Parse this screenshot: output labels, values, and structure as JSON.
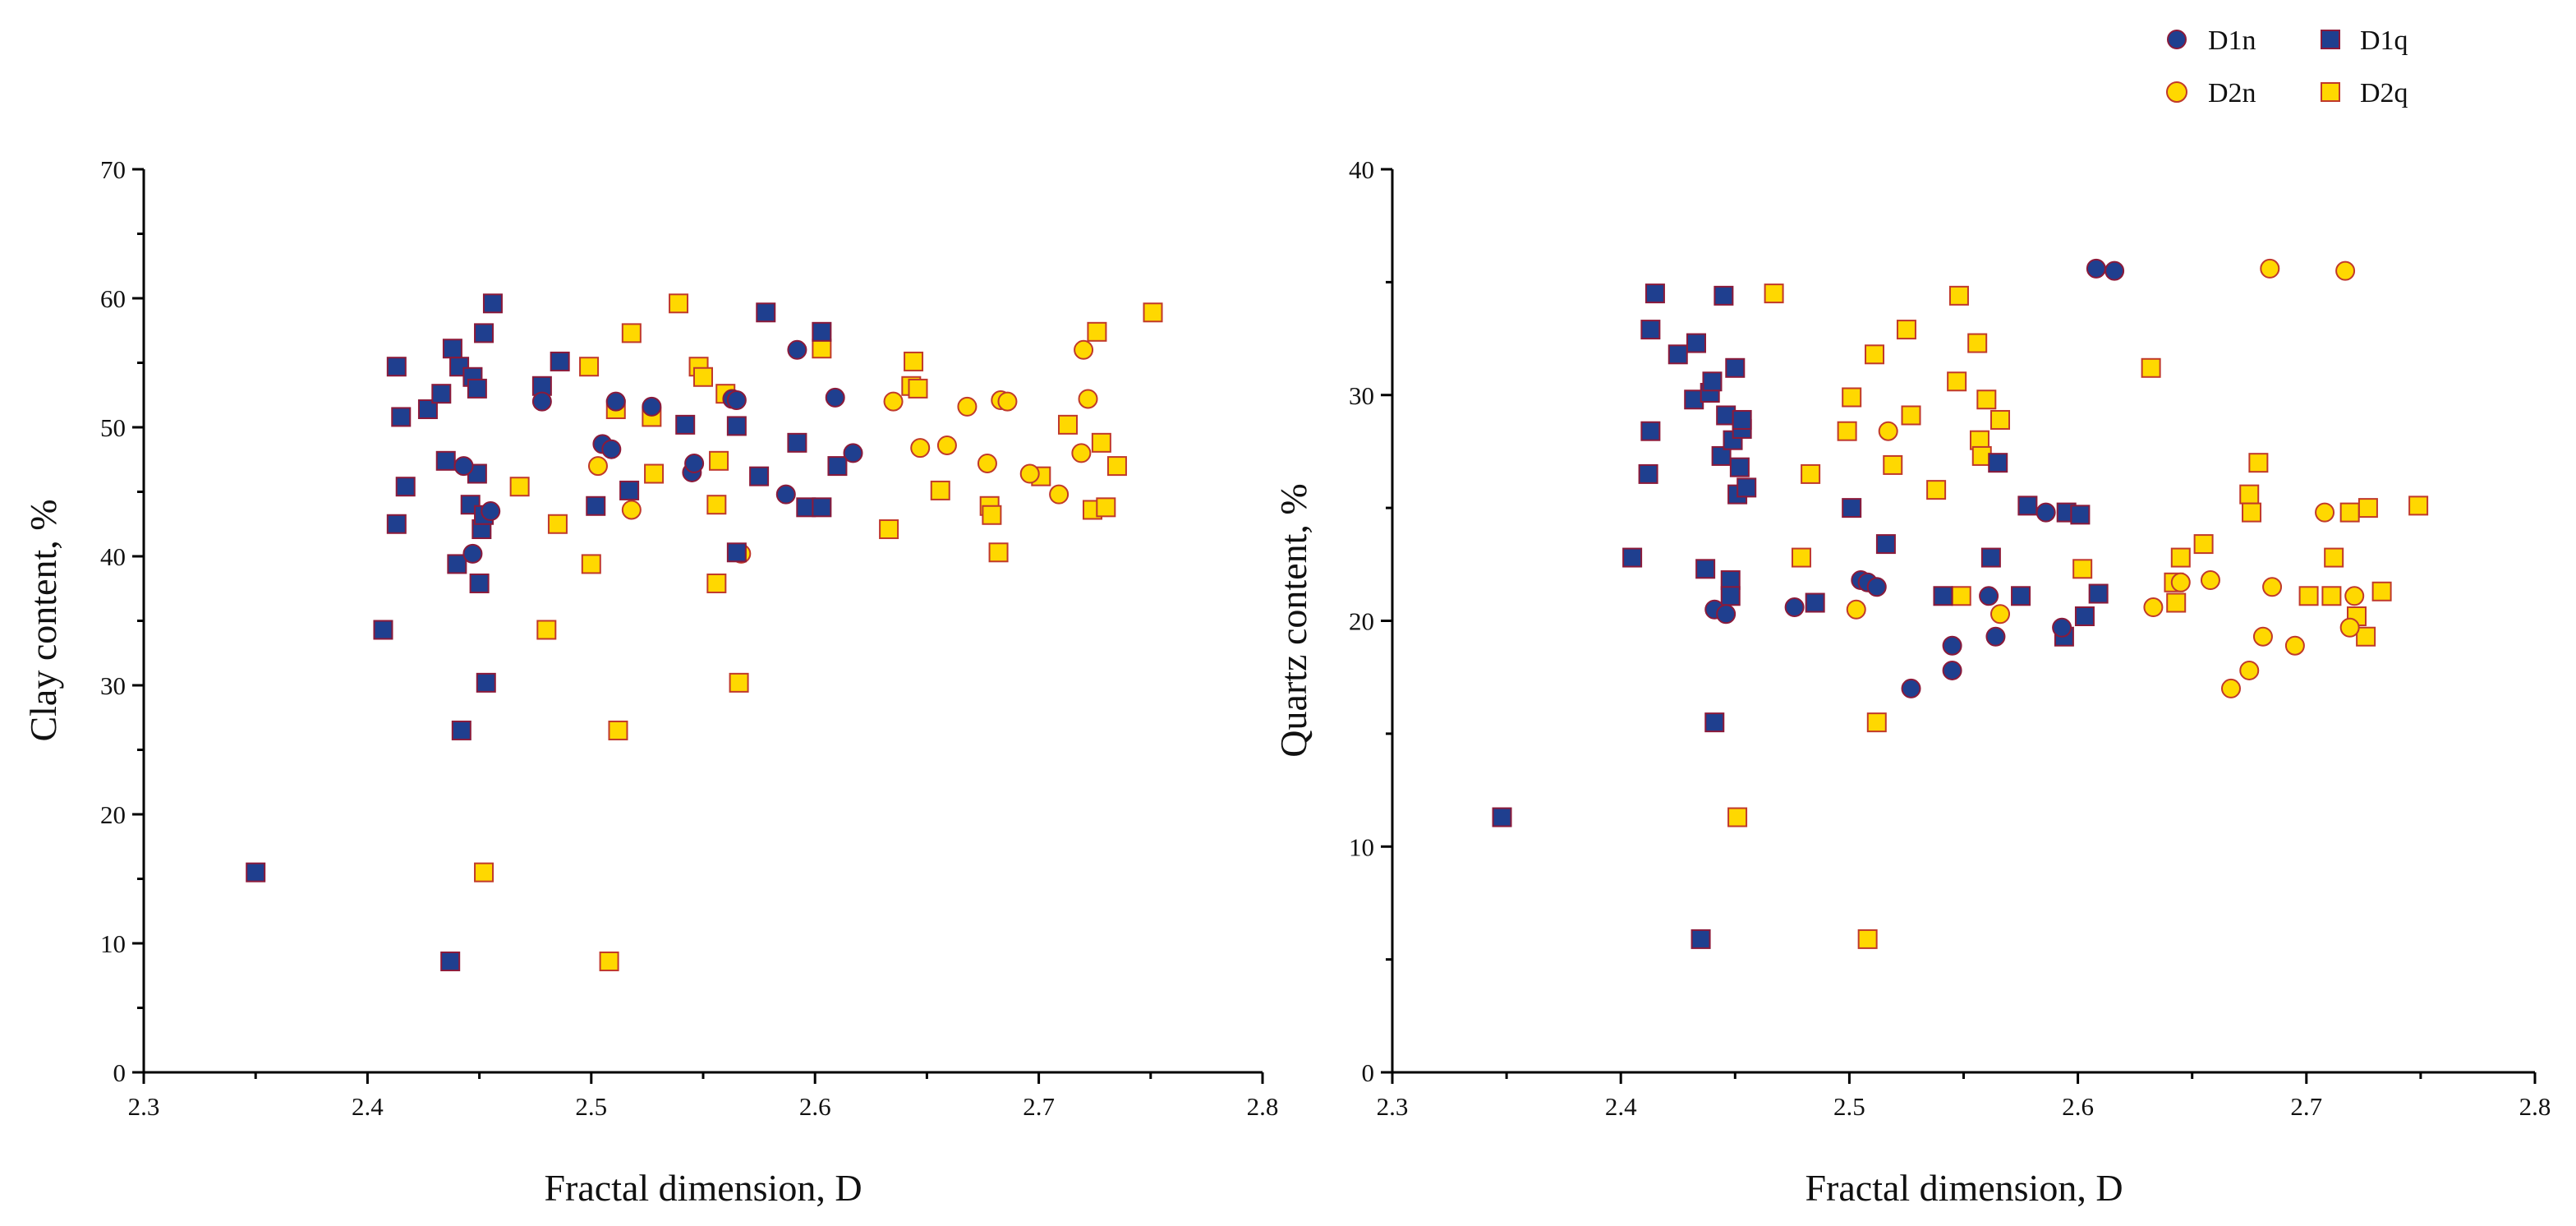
{
  "legend": [
    {
      "key": "D1n",
      "label": "D1n",
      "shape": "circle",
      "fill": "#1f3f8f",
      "stroke": "#8b1a3a"
    },
    {
      "key": "D1q",
      "label": "D1q",
      "shape": "square",
      "fill": "#1f3f8f",
      "stroke": "#8b1a3a"
    },
    {
      "key": "D2n",
      "label": "D2n",
      "shape": "circle",
      "fill": "#ffd800",
      "stroke": "#c0392b"
    },
    {
      "key": "D2q",
      "label": "D2q",
      "shape": "square",
      "fill": "#ffd800",
      "stroke": "#c0392b"
    }
  ],
  "chart_data": [
    {
      "type": "scatter",
      "title": "",
      "xlabel": "Fractal dimension, D",
      "ylabel": "Clay content, %",
      "xlim": [
        2.3,
        2.8
      ],
      "ylim": [
        0,
        70
      ],
      "xticks": [
        "2.3",
        "2.4",
        "2.5",
        "2.6",
        "2.7",
        "2.8"
      ],
      "yticks": [
        "0",
        "10",
        "20",
        "30",
        "40",
        "50",
        "60",
        "70"
      ],
      "series": [
        {
          "name": "D1n",
          "points": [
            [
              2.443,
              47
            ],
            [
              2.447,
              40.2
            ],
            [
              2.455,
              43.5
            ],
            [
              2.478,
              52
            ],
            [
              2.505,
              48.7
            ],
            [
              2.509,
              48.3
            ],
            [
              2.511,
              52
            ],
            [
              2.527,
              51.6
            ],
            [
              2.545,
              46.5
            ],
            [
              2.546,
              47.2
            ],
            [
              2.563,
              52.2
            ],
            [
              2.565,
              52.1
            ],
            [
              2.587,
              44.8
            ],
            [
              2.592,
              56
            ],
            [
              2.609,
              52.3
            ],
            [
              2.617,
              48
            ]
          ]
        },
        {
          "name": "D1q",
          "points": [
            [
              2.35,
              15.5
            ],
            [
              2.407,
              34.3
            ],
            [
              2.413,
              42.5
            ],
            [
              2.413,
              54.7
            ],
            [
              2.415,
              50.8
            ],
            [
              2.417,
              45.4
            ],
            [
              2.427,
              51.4
            ],
            [
              2.433,
              52.6
            ],
            [
              2.435,
              47.4
            ],
            [
              2.437,
              8.6
            ],
            [
              2.438,
              56.1
            ],
            [
              2.44,
              39.4
            ],
            [
              2.441,
              54.7
            ],
            [
              2.442,
              26.5
            ],
            [
              2.446,
              44
            ],
            [
              2.447,
              53.9
            ],
            [
              2.449,
              46.4
            ],
            [
              2.449,
              53
            ],
            [
              2.45,
              37.9
            ],
            [
              2.451,
              42.1
            ],
            [
              2.452,
              43.2
            ],
            [
              2.452,
              57.3
            ],
            [
              2.453,
              30.2
            ],
            [
              2.456,
              59.6
            ],
            [
              2.478,
              53.2
            ],
            [
              2.486,
              55.1
            ],
            [
              2.502,
              43.9
            ],
            [
              2.517,
              45.1
            ],
            [
              2.542,
              50.2
            ],
            [
              2.565,
              40.3
            ],
            [
              2.565,
              50.1
            ],
            [
              2.575,
              46.2
            ],
            [
              2.578,
              58.9
            ],
            [
              2.592,
              48.8
            ],
            [
              2.596,
              43.8
            ],
            [
              2.603,
              43.8
            ],
            [
              2.603,
              57.4
            ],
            [
              2.61,
              47
            ]
          ]
        },
        {
          "name": "D2n",
          "points": [
            [
              2.503,
              47
            ],
            [
              2.518,
              43.6
            ],
            [
              2.567,
              40.2
            ],
            [
              2.635,
              52
            ],
            [
              2.647,
              48.4
            ],
            [
              2.659,
              48.6
            ],
            [
              2.668,
              51.6
            ],
            [
              2.677,
              47.2
            ],
            [
              2.683,
              52.1
            ],
            [
              2.686,
              52
            ],
            [
              2.696,
              46.4
            ],
            [
              2.709,
              44.8
            ],
            [
              2.719,
              48
            ],
            [
              2.72,
              56
            ],
            [
              2.722,
              52.2
            ]
          ]
        },
        {
          "name": "D2q",
          "points": [
            [
              2.452,
              15.5
            ],
            [
              2.468,
              45.4
            ],
            [
              2.48,
              34.3
            ],
            [
              2.485,
              42.5
            ],
            [
              2.499,
              54.7
            ],
            [
              2.5,
              39.4
            ],
            [
              2.508,
              8.6
            ],
            [
              2.511,
              51.4
            ],
            [
              2.512,
              26.5
            ],
            [
              2.518,
              57.3
            ],
            [
              2.527,
              50.8
            ],
            [
              2.528,
              46.4
            ],
            [
              2.539,
              59.6
            ],
            [
              2.548,
              54.7
            ],
            [
              2.55,
              53.9
            ],
            [
              2.556,
              44
            ],
            [
              2.556,
              37.9
            ],
            [
              2.557,
              47.4
            ],
            [
              2.56,
              52.6
            ],
            [
              2.566,
              30.2
            ],
            [
              2.603,
              56.1
            ],
            [
              2.633,
              42.1
            ],
            [
              2.643,
              53.2
            ],
            [
              2.644,
              55.1
            ],
            [
              2.646,
              53
            ],
            [
              2.656,
              45.1
            ],
            [
              2.678,
              43.9
            ],
            [
              2.679,
              43.2
            ],
            [
              2.682,
              40.3
            ],
            [
              2.701,
              46.2
            ],
            [
              2.713,
              50.2
            ],
            [
              2.724,
              43.6
            ],
            [
              2.726,
              57.4
            ],
            [
              2.728,
              48.8
            ],
            [
              2.73,
              43.8
            ],
            [
              2.735,
              47
            ],
            [
              2.751,
              58.9
            ]
          ]
        }
      ]
    },
    {
      "type": "scatter",
      "title": "",
      "xlabel": "Fractal dimension, D",
      "ylabel": "Quartz content, %",
      "xlim": [
        2.3,
        2.8
      ],
      "ylim": [
        0,
        40
      ],
      "xticks": [
        "2.3",
        "2.4",
        "2.5",
        "2.6",
        "2.7",
        "2.8"
      ],
      "yticks": [
        "0",
        "10",
        "20",
        "30",
        "40"
      ],
      "series": [
        {
          "name": "D1n",
          "points": [
            [
              2.441,
              20.5
            ],
            [
              2.446,
              20.3
            ],
            [
              2.476,
              20.6
            ],
            [
              2.505,
              21.8
            ],
            [
              2.508,
              21.7
            ],
            [
              2.512,
              21.5
            ],
            [
              2.527,
              17
            ],
            [
              2.545,
              18.9
            ],
            [
              2.545,
              17.8
            ],
            [
              2.561,
              21.1
            ],
            [
              2.564,
              19.3
            ],
            [
              2.586,
              24.8
            ],
            [
              2.593,
              19.7
            ],
            [
              2.608,
              35.6
            ],
            [
              2.616,
              35.5
            ]
          ]
        },
        {
          "name": "D1q",
          "points": [
            [
              2.348,
              11.3
            ],
            [
              2.405,
              22.8
            ],
            [
              2.412,
              26.5
            ],
            [
              2.413,
              28.4
            ],
            [
              2.413,
              32.9
            ],
            [
              2.415,
              34.5
            ],
            [
              2.425,
              31.8
            ],
            [
              2.432,
              29.8
            ],
            [
              2.433,
              32.3
            ],
            [
              2.435,
              5.9
            ],
            [
              2.437,
              22.3
            ],
            [
              2.439,
              30.1
            ],
            [
              2.44,
              30.6
            ],
            [
              2.441,
              15.5
            ],
            [
              2.444,
              27.3
            ],
            [
              2.445,
              34.4
            ],
            [
              2.446,
              29.1
            ],
            [
              2.448,
              21.8
            ],
            [
              2.448,
              21.1
            ],
            [
              2.449,
              28
            ],
            [
              2.45,
              31.2
            ],
            [
              2.451,
              25.6
            ],
            [
              2.452,
              26.8
            ],
            [
              2.453,
              28.5
            ],
            [
              2.453,
              28.9
            ],
            [
              2.455,
              25.9
            ],
            [
              2.485,
              20.8
            ],
            [
              2.501,
              25
            ],
            [
              2.516,
              23.4
            ],
            [
              2.541,
              21.1
            ],
            [
              2.562,
              22.8
            ],
            [
              2.565,
              27
            ],
            [
              2.575,
              21.1
            ],
            [
              2.578,
              25.1
            ],
            [
              2.594,
              19.3
            ],
            [
              2.595,
              24.8
            ],
            [
              2.601,
              24.7
            ],
            [
              2.603,
              20.2
            ],
            [
              2.609,
              21.2
            ]
          ]
        },
        {
          "name": "D2n",
          "points": [
            [
              2.503,
              20.5
            ],
            [
              2.517,
              28.4
            ],
            [
              2.566,
              20.3
            ],
            [
              2.633,
              20.6
            ],
            [
              2.645,
              21.7
            ],
            [
              2.658,
              21.8
            ],
            [
              2.667,
              17
            ],
            [
              2.675,
              17.8
            ],
            [
              2.681,
              19.3
            ],
            [
              2.684,
              35.6
            ],
            [
              2.685,
              21.5
            ],
            [
              2.695,
              18.9
            ],
            [
              2.708,
              24.8
            ],
            [
              2.717,
              35.5
            ],
            [
              2.719,
              19.7
            ],
            [
              2.721,
              21.1
            ]
          ]
        },
        {
          "name": "D2q",
          "points": [
            [
              2.451,
              11.3
            ],
            [
              2.467,
              34.5
            ],
            [
              2.479,
              22.8
            ],
            [
              2.483,
              26.5
            ],
            [
              2.499,
              28.4
            ],
            [
              2.501,
              29.9
            ],
            [
              2.508,
              5.9
            ],
            [
              2.511,
              31.8
            ],
            [
              2.512,
              15.5
            ],
            [
              2.519,
              26.9
            ],
            [
              2.525,
              32.9
            ],
            [
              2.527,
              29.1
            ],
            [
              2.538,
              25.8
            ],
            [
              2.547,
              30.6
            ],
            [
              2.548,
              34.4
            ],
            [
              2.549,
              21.1
            ],
            [
              2.556,
              32.3
            ],
            [
              2.557,
              28
            ],
            [
              2.558,
              27.3
            ],
            [
              2.56,
              29.8
            ],
            [
              2.566,
              28.9
            ],
            [
              2.602,
              22.3
            ],
            [
              2.632,
              31.2
            ],
            [
              2.642,
              21.7
            ],
            [
              2.643,
              20.8
            ],
            [
              2.645,
              22.8
            ],
            [
              2.655,
              23.4
            ],
            [
              2.675,
              25.6
            ],
            [
              2.676,
              24.8
            ],
            [
              2.679,
              27
            ],
            [
              2.701,
              21.1
            ],
            [
              2.711,
              21.1
            ],
            [
              2.712,
              22.8
            ],
            [
              2.719,
              24.8
            ],
            [
              2.722,
              20.2
            ],
            [
              2.726,
              19.3
            ],
            [
              2.727,
              25
            ],
            [
              2.733,
              21.3
            ],
            [
              2.749,
              25.1
            ]
          ]
        }
      ]
    }
  ]
}
